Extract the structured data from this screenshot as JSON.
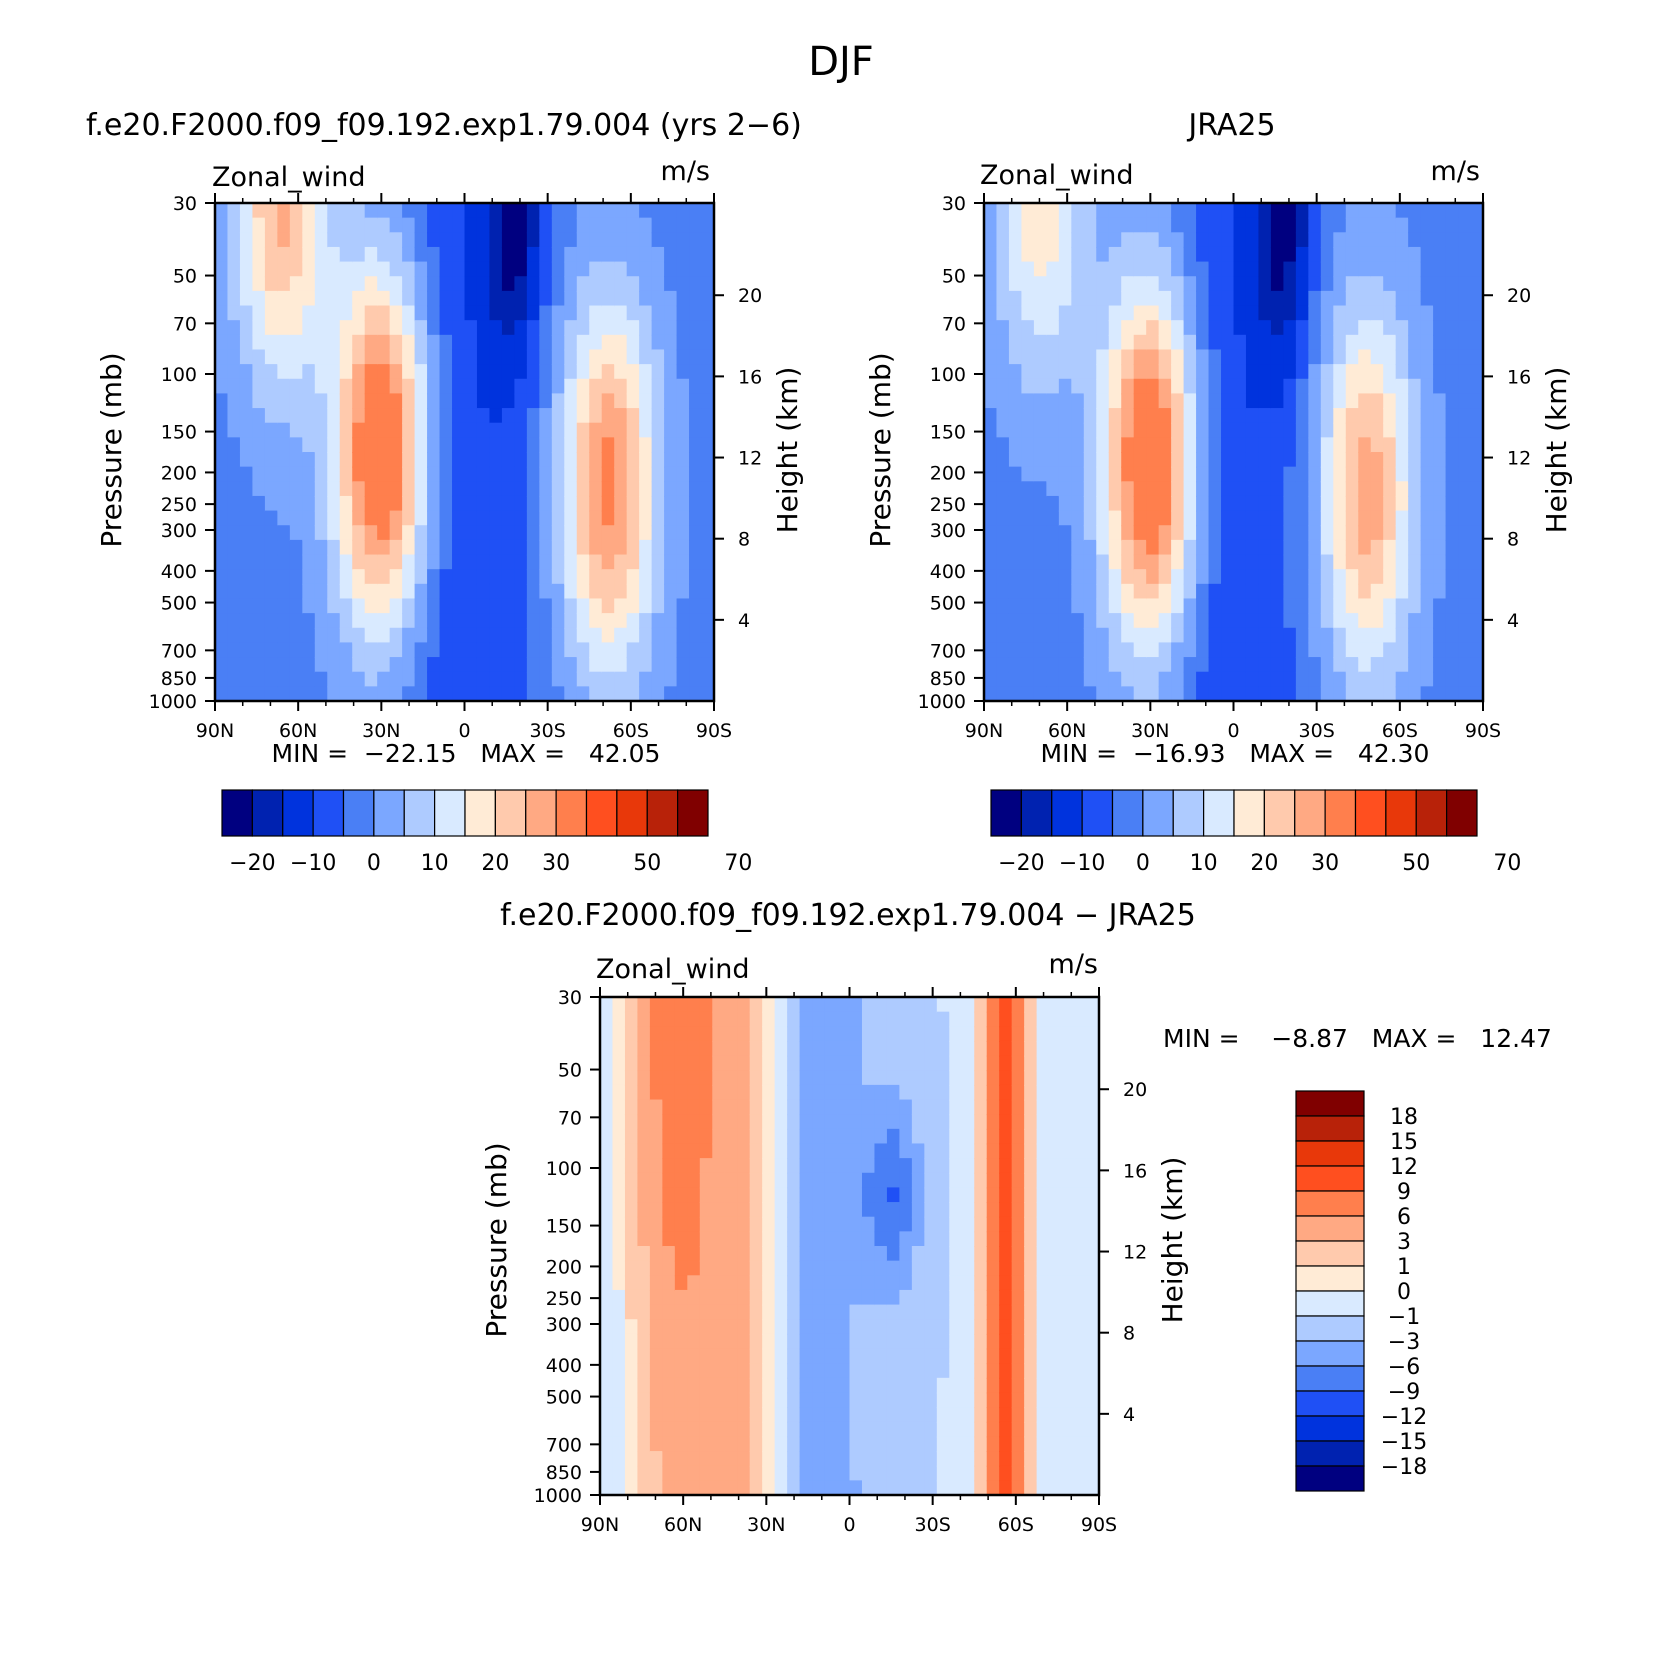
{
  "figure": {
    "title": "DJF"
  },
  "palettes": {
    "full": [
      "#000080",
      "#0022b0",
      "#0033dd",
      "#1f50f5",
      "#4a7ff5",
      "#7ba7ff",
      "#aecbff",
      "#d9eaff",
      "#ffebd6",
      "#ffcaad",
      "#ffa983",
      "#ff7f4d",
      "#ff4f1f",
      "#e8380a",
      "#b82209",
      "#800000"
    ],
    "diff": [
      "#000080",
      "#0022b0",
      "#0033dd",
      "#1f50f5",
      "#4a7ff5",
      "#7ba7ff",
      "#aecbff",
      "#d9eaff",
      "#ffebd6",
      "#ffcaad",
      "#ffa983",
      "#ff7f4d",
      "#ff4f1f",
      "#e8380a",
      "#b82209",
      "#800000"
    ]
  },
  "chart_data": [
    {
      "type": "heatmap",
      "id": "model",
      "title": "f.e20.F2000.f09_f09.192.exp1.79.004 (yrs 2−6)",
      "left_label": "Zonal_wind",
      "right_label": "m/s",
      "xlabel": "",
      "ylabel": "Pressure (mb)",
      "ylabel_right": "Height (km)",
      "xticks": [
        "90N",
        "60N",
        "30N",
        "0",
        "30S",
        "60S",
        "90S"
      ],
      "x_values": [
        90,
        60,
        30,
        0,
        -30,
        -60,
        -90
      ],
      "yticks": [
        "30",
        "50",
        "70",
        "100",
        "150",
        "200",
        "250",
        "300",
        "400",
        "500",
        "700",
        "850",
        "1000"
      ],
      "y_values": [
        30,
        50,
        70,
        100,
        150,
        200,
        250,
        300,
        400,
        500,
        700,
        850,
        1000
      ],
      "y_scale": "log",
      "y_inverted": true,
      "right_ticks": [
        "20",
        "16",
        "12",
        "8",
        "4"
      ],
      "min_max_text": "MIN =  −22.15   MAX =   42.05",
      "jets": [
        {
          "lat": 30,
          "p": 170,
          "max": 42
        },
        {
          "lat": -52,
          "p": 220,
          "max": 34
        },
        {
          "lat": 66,
          "p": 30,
          "max": 28
        }
      ],
      "colorbar": {
        "orientation": "horizontal",
        "levels": [
          -25,
          -20,
          -15,
          -10,
          -5,
          0,
          5,
          10,
          15,
          20,
          25,
          30,
          40,
          50,
          60,
          70
        ],
        "labels": [
          "−20",
          "−10",
          "0",
          "10",
          "20",
          "30",
          "50",
          "70"
        ]
      }
    },
    {
      "type": "heatmap",
      "id": "obs",
      "title": "JRA25",
      "left_label": "Zonal_wind",
      "right_label": "m/s",
      "xlabel": "",
      "ylabel": "Pressure (mb)",
      "ylabel_right": "Height (km)",
      "xticks": [
        "90N",
        "60N",
        "30N",
        "0",
        "30S",
        "60S",
        "90S"
      ],
      "x_values": [
        90,
        60,
        30,
        0,
        -30,
        -60,
        -90
      ],
      "yticks": [
        "30",
        "50",
        "70",
        "100",
        "150",
        "200",
        "250",
        "300",
        "400",
        "500",
        "700",
        "850",
        "1000"
      ],
      "y_values": [
        30,
        50,
        70,
        100,
        150,
        200,
        250,
        300,
        400,
        500,
        700,
        850,
        1000
      ],
      "y_scale": "log",
      "y_inverted": true,
      "right_ticks": [
        "20",
        "16",
        "12",
        "8",
        "4"
      ],
      "min_max_text": "MIN =  −16.93   MAX =   42.30",
      "jets": [
        {
          "lat": 30,
          "p": 190,
          "max": 42
        },
        {
          "lat": -48,
          "p": 230,
          "max": 30
        },
        {
          "lat": 70,
          "p": 30,
          "max": 20
        }
      ],
      "colorbar": {
        "orientation": "horizontal",
        "levels": [
          -25,
          -20,
          -15,
          -10,
          -5,
          0,
          5,
          10,
          15,
          20,
          25,
          30,
          40,
          50,
          60,
          70
        ],
        "labels": [
          "−20",
          "−10",
          "0",
          "10",
          "20",
          "30",
          "50",
          "70"
        ]
      }
    },
    {
      "type": "heatmap",
      "id": "diff",
      "title": "f.e20.F2000.f09_f09.192.exp1.79.004 − JRA25",
      "left_label": "Zonal_wind",
      "right_label": "m/s",
      "xlabel": "",
      "ylabel": "Pressure (mb)",
      "ylabel_right": "Height (km)",
      "xticks": [
        "90N",
        "60N",
        "30N",
        "0",
        "30S",
        "60S",
        "90S"
      ],
      "x_values": [
        90,
        60,
        30,
        0,
        -30,
        -60,
        -90
      ],
      "yticks": [
        "30",
        "50",
        "70",
        "100",
        "150",
        "200",
        "250",
        "300",
        "400",
        "500",
        "700",
        "850",
        "1000"
      ],
      "y_values": [
        30,
        50,
        70,
        100,
        150,
        200,
        250,
        300,
        400,
        500,
        700,
        850,
        1000
      ],
      "y_scale": "log",
      "y_inverted": true,
      "right_ticks": [
        "20",
        "16",
        "12",
        "8",
        "4"
      ],
      "min_max_text": "MIN =    −8.87   MAX =   12.47",
      "colorbar": {
        "orientation": "vertical",
        "levels": [
          -21,
          -18,
          -15,
          -12,
          -9,
          -6,
          -3,
          -1,
          0,
          1,
          3,
          6,
          9,
          12,
          15,
          18
        ],
        "labels": [
          "18",
          "15",
          "12",
          "9",
          "6",
          "3",
          "1",
          "0",
          "−1",
          "−3",
          "−6",
          "−9",
          "−12",
          "−15",
          "−18"
        ]
      }
    }
  ]
}
